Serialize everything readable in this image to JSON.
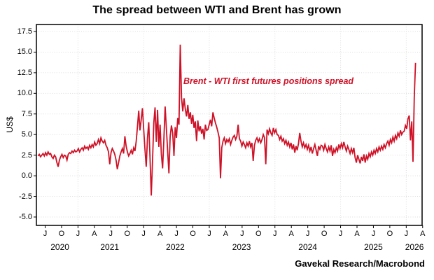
{
  "chart_data": {
    "type": "line",
    "title": "The spread between WTI and Brent has grown",
    "ylabel": "US$",
    "annotation": "Brent - WTI first futures positions spread",
    "source": "Gavekal Research/Macrobond",
    "grid": "dotted both axes",
    "legend_position": "none (in-plot annotation only)",
    "ylim": [
      -5.0,
      17.5
    ],
    "y_ticks": {
      "values": [
        17.5,
        15.0,
        12.5,
        10.0,
        7.5,
        5.0,
        2.5,
        0.0,
        -2.5,
        -5.0
      ],
      "labels": [
        "17.5",
        "15.0",
        "12.5",
        "10.0",
        "7.5",
        "5.0",
        "2.5",
        "0.0",
        "-2.5",
        "-5.0"
      ]
    },
    "x_axis": {
      "span_months": 70.5,
      "start": "mid-May 2020",
      "end": "early Apr 2026",
      "month_tick_labels": [
        "J",
        "O",
        "J",
        "A",
        "J",
        "O",
        "J",
        "A",
        "J",
        "O",
        "J",
        "A",
        "J",
        "O",
        "J",
        "A",
        "J",
        "O",
        "J",
        "A",
        "J",
        "O",
        "J",
        "A"
      ],
      "first_tick_month_offset": 1.6,
      "tick_step_months": 3,
      "year_labels": [
        {
          "label": "2020",
          "m": 4.3
        },
        {
          "label": "2021",
          "m": 13.4
        },
        {
          "label": "2022",
          "m": 25.4
        },
        {
          "label": "2023",
          "m": 37.5
        },
        {
          "label": "2024",
          "m": 49.6
        },
        {
          "label": "2025",
          "m": 61.6
        },
        {
          "label": "2026",
          "m": 69.1
        }
      ],
      "january_gridline_month_offsets": [
        7.6,
        19.6,
        31.6,
        43.6,
        55.6,
        67.6
      ]
    },
    "series": [
      {
        "name": "Brent - WTI first futures positions spread",
        "unit": "US$",
        "sampling": "approx. weekly values read from plot",
        "start_month_offset": 0.3,
        "step_months": 0.23,
        "values": [
          2.4,
          2.6,
          2.3,
          2.5,
          2.7,
          2.4,
          2.8,
          2.5,
          2.9,
          2.6,
          2.7,
          2.3,
          2.1,
          2.5,
          2.3,
          1.6,
          1.1,
          1.9,
          2.3,
          2.6,
          2.2,
          2.5,
          2.4,
          1.9,
          2.6,
          2.8,
          2.7,
          3.0,
          2.8,
          3.1,
          2.9,
          3.0,
          3.3,
          2.9,
          3.2,
          3.4,
          3.1,
          3.6,
          3.3,
          3.5,
          3.2,
          3.7,
          3.4,
          3.8,
          3.5,
          4.1,
          3.7,
          3.9,
          4.4,
          3.9,
          4.6,
          4.2,
          4.0,
          4.3,
          3.7,
          3.4,
          2.9,
          1.4,
          2.8,
          3.3,
          3.0,
          2.6,
          1.9,
          0.8,
          1.6,
          2.4,
          2.9,
          3.3,
          2.7,
          4.8,
          3.6,
          2.9,
          2.4,
          2.7,
          3.1,
          2.6,
          3.4,
          3.0,
          4.2,
          6.0,
          7.9,
          5.5,
          6.8,
          8.2,
          5.6,
          3.2,
          1.1,
          4.6,
          6.5,
          2.2,
          -2.4,
          1.8,
          6.4,
          8.3,
          4.1,
          8.0,
          3.5,
          6.2,
          2.6,
          0.9,
          4.4,
          8.4,
          5.7,
          3.0,
          0.3,
          4.8,
          6.1,
          5.2,
          2.4,
          5.9,
          4.6,
          7.0,
          6.2,
          15.9,
          9.5,
          7.8,
          9.4,
          8.1,
          7.2,
          8.6,
          6.9,
          7.7,
          6.3,
          7.4,
          5.8,
          6.6,
          4.2,
          6.7,
          5.4,
          6.0,
          5.1,
          5.7,
          4.4,
          6.2,
          5.5,
          5.6,
          6.2,
          6.8,
          6.0,
          7.7,
          7.0,
          6.4,
          5.9,
          5.3,
          4.6,
          -0.3,
          3.4,
          4.2,
          4.6,
          3.9,
          4.4,
          4.1,
          4.5,
          3.8,
          4.3,
          4.7,
          4.9,
          4.4,
          4.8,
          6.2,
          4.5,
          4.2,
          3.6,
          4.1,
          3.8,
          3.4,
          4.0,
          3.6,
          4.2,
          3.5,
          4.0,
          1.8,
          3.7,
          4.3,
          4.6,
          4.1,
          4.5,
          4.0,
          4.4,
          5.0,
          4.6,
          1.4,
          5.6,
          5.1,
          5.7,
          5.2,
          4.9,
          5.8,
          5.2,
          5.6,
          5.0,
          4.9,
          4.4,
          4.8,
          4.2,
          4.5,
          3.9,
          4.3,
          3.7,
          4.1,
          3.5,
          4.0,
          3.2,
          3.8,
          2.8,
          3.6,
          3.1,
          3.9,
          5.2,
          4.2,
          3.5,
          4.0,
          3.4,
          3.8,
          3.2,
          3.7,
          3.0,
          3.5,
          2.7,
          3.3,
          3.8,
          3.1,
          2.4,
          3.6,
          3.2,
          3.7,
          3.6,
          3.1,
          3.8,
          3.3,
          2.9,
          3.5,
          3.0,
          3.7,
          2.4,
          3.2,
          2.8,
          3.4,
          3.0,
          3.8,
          3.3,
          3.9,
          3.4,
          4.1,
          3.5,
          3.0,
          3.6,
          3.2,
          2.7,
          3.3,
          2.8,
          3.4,
          2.2,
          1.6,
          2.5,
          2.0,
          1.5,
          2.3,
          1.8,
          2.6,
          1.6,
          2.4,
          2.0,
          2.7,
          2.3,
          2.9,
          2.5,
          3.1,
          2.7,
          3.3,
          2.9,
          3.5,
          3.1,
          3.6,
          3.2,
          3.8,
          3.4,
          3.9,
          4.2,
          3.7,
          4.4,
          4.0,
          4.7,
          4.2,
          4.9,
          4.5,
          5.2,
          4.8,
          5.5,
          5.0,
          5.3,
          5.4,
          6.1,
          5.7,
          6.9,
          7.3,
          4.3,
          6.6,
          1.7,
          9.5,
          13.7
        ]
      }
    ]
  },
  "colors": {
    "line": "#CE1126",
    "annotation": "#CE1126",
    "grid": "#DBDBDB",
    "axis": "#000000",
    "text": "#000000",
    "background": "#FFFFFF"
  }
}
